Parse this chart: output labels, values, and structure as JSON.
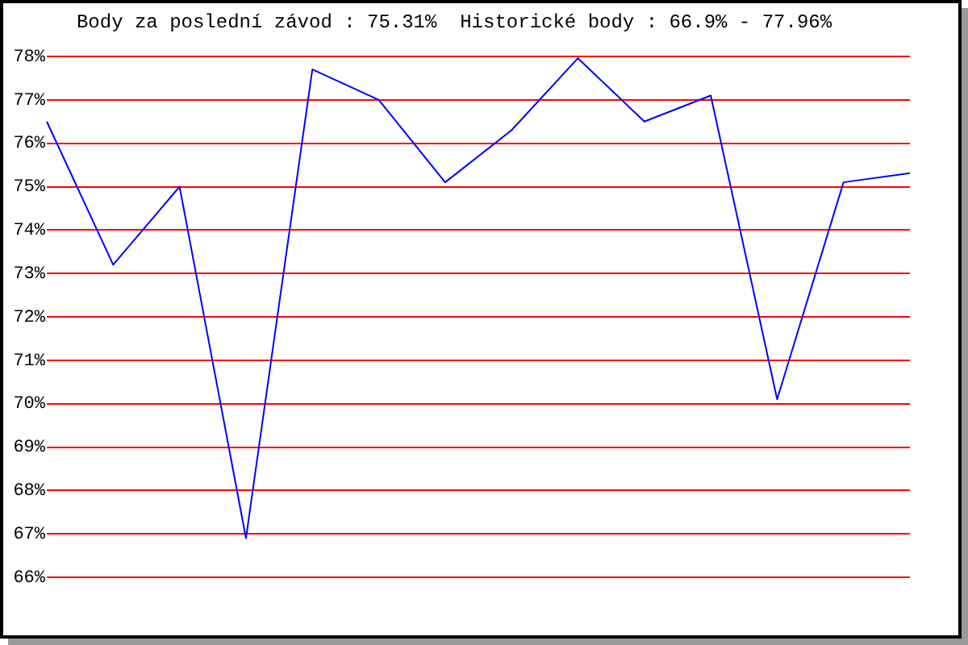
{
  "chart_data": {
    "type": "line",
    "title": "Body za poslední závod : 75.31%  Historické body : 66.9% - 77.96%",
    "categories": [
      null,
      null,
      null,
      null,
      null,
      null,
      null,
      null,
      null,
      null,
      null,
      null,
      null,
      null
    ],
    "series": [
      {
        "color": "#0000ff",
        "values": [
          76.5,
          73.2,
          75.0,
          66.9,
          77.7,
          77.0,
          75.1,
          76.3,
          77.96,
          76.5,
          77.1,
          70.1,
          75.1,
          75.31
        ]
      }
    ],
    "ylim": [
      66,
      78
    ],
    "yticks": [
      {
        "value": 66,
        "label": "66%"
      },
      {
        "value": 67,
        "label": "67%"
      },
      {
        "value": 68,
        "label": "68%"
      },
      {
        "value": 69,
        "label": "69%"
      },
      {
        "value": 70,
        "label": "70%"
      },
      {
        "value": 71,
        "label": "71%"
      },
      {
        "value": 72,
        "label": "72%"
      },
      {
        "value": 73,
        "label": "73%"
      },
      {
        "value": 74,
        "label": "74%"
      },
      {
        "value": 75,
        "label": "75%"
      },
      {
        "value": 76,
        "label": "76%"
      },
      {
        "value": 77,
        "label": "77%"
      },
      {
        "value": 78,
        "label": "78%"
      }
    ],
    "grid": "y",
    "tick_labels": "y",
    "marker": "none",
    "legend": false
  }
}
